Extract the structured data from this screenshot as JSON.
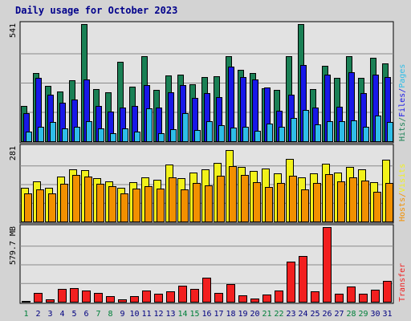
{
  "title": "Daily usage for October 2023",
  "colors": {
    "background": "#d3d3d3",
    "plot_bg": "#e2e2e2",
    "title": "#00008b",
    "hits": "#1a8055",
    "files": "#1818e8",
    "pages": "#2ebde8",
    "visits": "#f2f21a",
    "sites": "#f29000",
    "kbytes": "#f21f1f",
    "day_weekday": "#000080",
    "day_weekend": "#00803a"
  },
  "chart_data": {
    "type": "bar",
    "days": [
      "1",
      "2",
      "3",
      "4",
      "5",
      "6",
      "7",
      "8",
      "9",
      "10",
      "11",
      "12",
      "13",
      "14",
      "15",
      "16",
      "17",
      "18",
      "19",
      "20",
      "21",
      "22",
      "23",
      "24",
      "25",
      "26",
      "27",
      "28",
      "29",
      "30",
      "31"
    ],
    "weekend_days": [
      "1",
      "7",
      "8",
      "14",
      "15",
      "21",
      "22",
      "28",
      "29"
    ],
    "panels": [
      {
        "axis_label": "541",
        "max": 541,
        "label_parts": [
          {
            "text": "Hits",
            "color_key": "hits"
          },
          {
            "text": "/",
            "color_key": "hits"
          },
          {
            "text": "Files",
            "color_key": "files"
          },
          {
            "text": "/",
            "color_key": "files"
          },
          {
            "text": "Pages",
            "color_key": "pages"
          }
        ],
        "series": [
          {
            "name": "Hits",
            "color_key": "hits",
            "values": [
              163,
              316,
              257,
              231,
              282,
              541,
              242,
              226,
              368,
              251,
              393,
              237,
              304,
              309,
              263,
              298,
              299,
              391,
              328,
              316,
              245,
              236,
              394,
              541,
              241,
              350,
              291,
              392,
              291,
              384,
              361
            ]
          },
          {
            "name": "Files",
            "color_key": "files",
            "values": [
              130,
              292,
              215,
              177,
              192,
              287,
              162,
              137,
              154,
              164,
              260,
              154,
              227,
              260,
              201,
              224,
              203,
              345,
              297,
              287,
              247,
              142,
              214,
              353,
              157,
              309,
              160,
              320,
              223,
              306,
              298
            ]
          },
          {
            "name": "Pages",
            "color_key": "pages",
            "values": [
              46,
              67,
              89,
              59,
              66,
              93,
              61,
              38,
              60,
              45,
              153,
              38,
              56,
              129,
              52,
              94,
              74,
              64,
              66,
              48,
              82,
              66,
              106,
              145,
              77,
              91,
              91,
              97,
              66,
              120,
              89
            ]
          }
        ]
      },
      {
        "axis_label": "281",
        "max": 281,
        "label_parts": [
          {
            "text": "Hosts",
            "color_key": "sites"
          },
          {
            "text": "/",
            "color_key": "sites"
          },
          {
            "text": "Visits",
            "color_key": "visits"
          }
        ],
        "series": [
          {
            "name": "Visits",
            "color_key": "visits",
            "values": [
              128,
              150,
              127,
              168,
              195,
              194,
              163,
              151,
              128,
              149,
              165,
              158,
              216,
              164,
              184,
              196,
              220,
              270,
              206,
              189,
              198,
              181,
              236,
              167,
              180,
              218,
              184,
              205,
              196,
              148,
              232
            ]
          },
          {
            "name": "Hosts",
            "color_key": "sites",
            "values": [
              106,
              122,
              107,
              142,
              175,
              169,
              141,
              132,
              105,
              125,
              134,
              123,
              167,
              120,
              144,
              136,
              173,
              207,
              175,
              149,
              131,
              144,
              171,
              122,
              146,
              179,
              152,
              166,
              153,
              111,
              146
            ]
          }
        ]
      },
      {
        "axis_label": "579.7 MB",
        "max": 579.7,
        "label_parts": [
          {
            "text": "Transfer",
            "color_key": "kbytes"
          }
        ],
        "series": [
          {
            "name": "Transfer",
            "color_key": "kbytes",
            "values": [
              6.5,
              67,
              19.5,
              98,
              104,
              90,
              71,
              45,
              19.5,
              45,
              90,
              65,
              84,
              124,
              99,
              188,
              71,
              136,
              47,
              26,
              58,
              87,
              310,
              354,
              84,
              579.7,
              64,
              116,
              61,
              91,
              161
            ]
          }
        ]
      }
    ]
  }
}
